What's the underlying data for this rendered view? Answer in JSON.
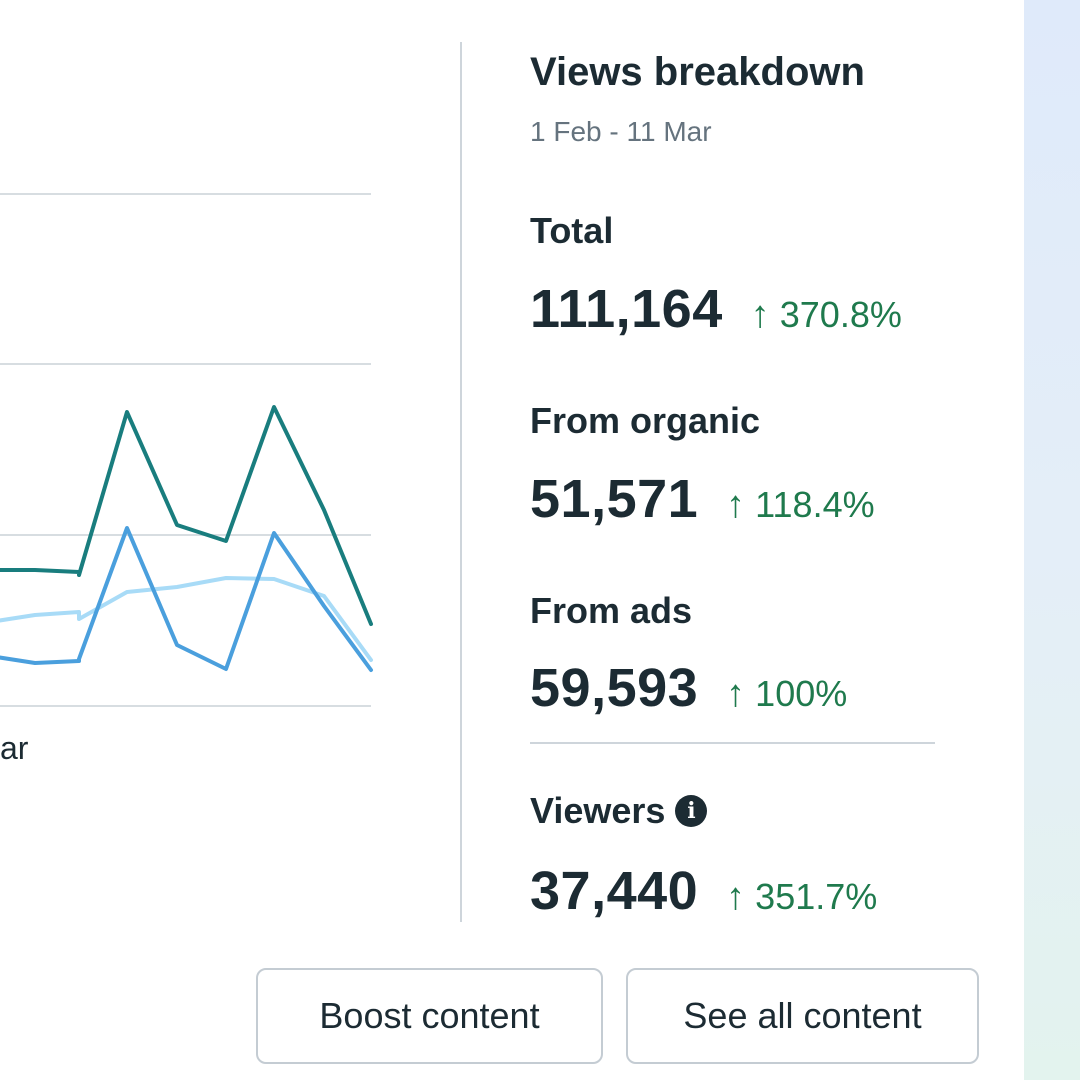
{
  "chart_data": {
    "type": "line",
    "x_tick_visible": "ar",
    "series": [
      {
        "color": "#197d7e",
        "values": [
          570,
          570,
          572,
          575,
          412,
          525,
          541,
          407,
          510,
          624
        ]
      },
      {
        "color": "#4a9fdd",
        "values": [
          656,
          663,
          661,
          659,
          528,
          645,
          669,
          533,
          606,
          670
        ]
      },
      {
        "color": "#a8dbf7",
        "values": [
          622,
          615,
          612,
          619,
          592,
          587,
          578,
          579,
          596,
          660
        ]
      }
    ]
  },
  "breakdown": {
    "title": "Views breakdown",
    "range": "1 Feb - 11 Mar",
    "arrow": "↑",
    "total": {
      "label": "Total",
      "value": "111,164",
      "change": "370.8%"
    },
    "organic": {
      "label": "From organic",
      "value": "51,571",
      "change": "118.4%"
    },
    "ads": {
      "label": "From ads",
      "value": "59,593",
      "change": "100%"
    },
    "viewers": {
      "label": "Viewers",
      "value": "37,440",
      "change": "351.7%",
      "icon": "info-icon"
    }
  },
  "actions": {
    "boost": "Boost content",
    "see_all": "See all content"
  },
  "colors": {
    "positive": "#1f7a4d",
    "text": "#1c2b33",
    "muted": "#65737e"
  }
}
